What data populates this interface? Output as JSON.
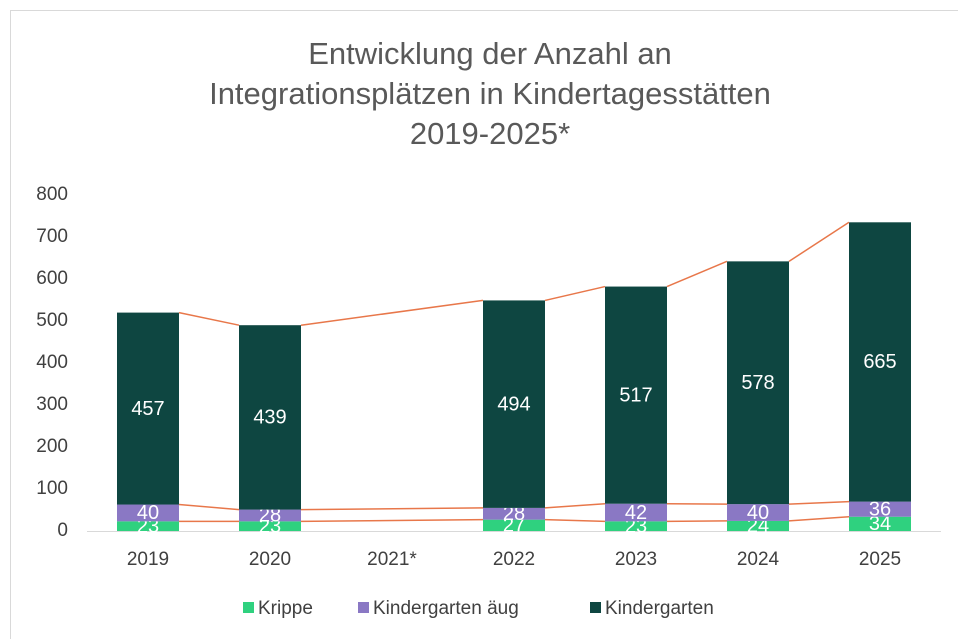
{
  "chart_data": {
    "type": "stacked_bar",
    "title": [
      "Entwicklung der Anzahl an",
      "Integrationsplätzen in Kindertagesstätten",
      "2019-2025*"
    ],
    "categories": [
      "2019",
      "2020",
      "2021*",
      "2022",
      "2023",
      "2024",
      "2025"
    ],
    "series": [
      {
        "name": "Krippe",
        "color": "#2fd17f",
        "values": [
          23,
          23,
          null,
          27,
          23,
          24,
          34
        ]
      },
      {
        "name": "Kindergarten äug",
        "color": "#8a78c4",
        "values": [
          40,
          28,
          null,
          28,
          42,
          40,
          36
        ]
      },
      {
        "name": "Kindergarten",
        "color": "#0e4641",
        "values": [
          457,
          439,
          null,
          494,
          517,
          578,
          665
        ]
      }
    ],
    "series_lines": true,
    "series_line_color": "#e8774a",
    "ylim": [
      0,
      800
    ],
    "yticks": [
      0,
      100,
      200,
      300,
      400,
      500,
      600,
      700,
      800
    ],
    "grid": false,
    "legend": "bottom"
  }
}
